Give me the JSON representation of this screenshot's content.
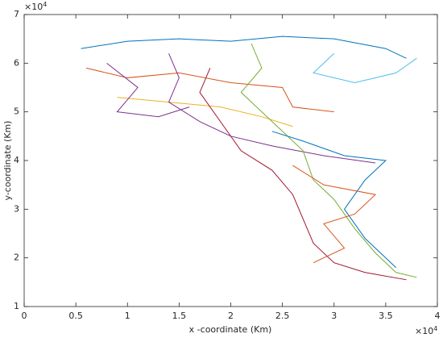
{
  "chart_data": {
    "type": "line",
    "xlabel": "x -coordinate (Km)",
    "ylabel": "y-coordinate (Km)",
    "x_multiplier": {
      "base": "×10",
      "exponent": "4"
    },
    "y_multiplier": {
      "base": "×10",
      "exponent": "4"
    },
    "xlim": [
      0,
      4
    ],
    "xticks": [
      0,
      0.5,
      1,
      1.5,
      2,
      2.5,
      3,
      3.5,
      4
    ],
    "ylim": [
      1,
      7
    ],
    "yticks": [
      1,
      2,
      3,
      4,
      5,
      6,
      7
    ],
    "grid": false,
    "series": [
      {
        "color": "#0072bd",
        "x": [
          0.55,
          1.0,
          1.5,
          2.0,
          2.5,
          3.0,
          3.5,
          3.7
        ],
        "y": [
          6.3,
          6.45,
          6.5,
          6.45,
          6.55,
          6.5,
          6.3,
          6.1
        ]
      },
      {
        "color": "#d95319",
        "x": [
          0.6,
          1.0,
          1.5,
          2.0,
          2.5,
          2.6,
          3.0
        ],
        "y": [
          5.9,
          5.7,
          5.8,
          5.6,
          5.5,
          5.1,
          5.0
        ]
      },
      {
        "color": "#edb120",
        "x": [
          0.9,
          1.4,
          1.9,
          2.3,
          2.6
        ],
        "y": [
          5.3,
          5.2,
          5.1,
          4.9,
          4.7
        ]
      },
      {
        "color": "#7e2f8e",
        "x": [
          1.4,
          1.5,
          1.4,
          1.7,
          2.0,
          2.4,
          2.9,
          3.4
        ],
        "y": [
          6.2,
          5.7,
          5.2,
          4.8,
          4.5,
          4.3,
          4.1,
          3.95
        ]
      },
      {
        "color": "#77ac30",
        "x": [
          2.2,
          2.3,
          2.1,
          2.3,
          2.5,
          2.7,
          2.8,
          3.0,
          3.2,
          3.4,
          3.6,
          3.8
        ],
        "y": [
          6.4,
          5.9,
          5.4,
          5.0,
          4.6,
          4.2,
          3.6,
          3.2,
          2.6,
          2.1,
          1.7,
          1.6
        ]
      },
      {
        "color": "#4dbeee",
        "x": [
          3.0,
          2.8,
          3.2,
          3.6,
          3.8
        ],
        "y": [
          6.2,
          5.8,
          5.6,
          5.8,
          6.1
        ]
      },
      {
        "color": "#a2142f",
        "x": [
          1.8,
          1.7,
          1.9,
          2.1,
          2.4,
          2.6,
          2.7,
          2.8,
          3.0,
          3.3,
          3.7
        ],
        "y": [
          5.9,
          5.4,
          4.8,
          4.2,
          3.8,
          3.3,
          2.8,
          2.3,
          1.9,
          1.7,
          1.55
        ]
      },
      {
        "color": "#0072bd",
        "x": [
          2.4,
          2.7,
          3.1,
          3.5,
          3.3,
          3.1,
          3.3,
          3.6
        ],
        "y": [
          4.6,
          4.4,
          4.1,
          4.0,
          3.6,
          3.0,
          2.4,
          1.8
        ]
      },
      {
        "color": "#d95319",
        "x": [
          2.6,
          2.9,
          3.4,
          3.2,
          2.9,
          3.1,
          2.8
        ],
        "y": [
          3.9,
          3.5,
          3.3,
          2.9,
          2.7,
          2.2,
          1.9
        ]
      },
      {
        "color": "#7e2f8e",
        "x": [
          0.8,
          1.1,
          0.9,
          1.3,
          1.6
        ],
        "y": [
          6.0,
          5.5,
          5.0,
          4.9,
          5.1
        ]
      }
    ]
  }
}
